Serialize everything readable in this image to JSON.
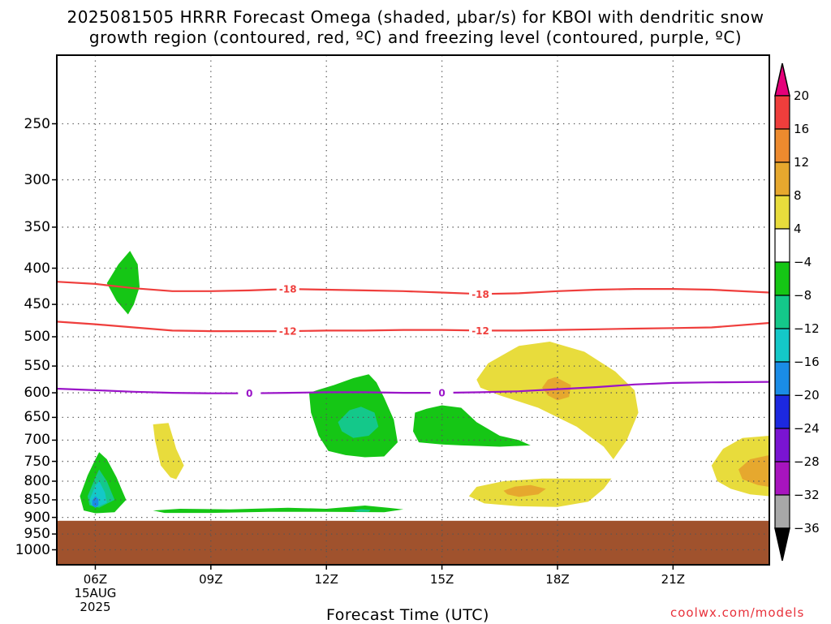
{
  "chart_data": {
    "type": "heatmap",
    "title_line1": "2025081505 HRRR Forecast Omega (shaded, μbar/s) for KBOI with dendritic snow",
    "title_line2": "growth region (contoured, red, ºC) and freezing level (contoured, purple, ºC)",
    "xlabel": "Forecast Time (UTC)",
    "credit": "coolwx.com/models",
    "x_ticks": [
      {
        "hour": 6,
        "label": "06Z",
        "sub1": "15AUG",
        "sub2": "2025"
      },
      {
        "hour": 9,
        "label": "09Z"
      },
      {
        "hour": 12,
        "label": "12Z"
      },
      {
        "hour": 15,
        "label": "15Z"
      },
      {
        "hour": 18,
        "label": "18Z"
      },
      {
        "hour": 21,
        "label": "21Z"
      }
    ],
    "x_range_hours": [
      5,
      23.5
    ],
    "y_ticks": [
      250,
      300,
      350,
      400,
      450,
      500,
      550,
      600,
      650,
      700,
      750,
      800,
      850,
      900,
      950,
      1000
    ],
    "y_axis": "pressure (hPa), log scale, decreasing upward",
    "y_range": [
      1050,
      200
    ],
    "grid": "dotted",
    "surface_below_hPa": 910,
    "colorbar": {
      "ticks": [
        20,
        16,
        12,
        8,
        4,
        -4,
        -8,
        -12,
        -16,
        -20,
        -24,
        -28,
        -32,
        -36
      ],
      "colors": [
        "#e5007a",
        "#ef3e3c",
        "#ed8a2e",
        "#e6a82e",
        "#e8dc3c",
        "#ffffff",
        "#15c615",
        "#14c88a",
        "#14c8c8",
        "#1a8ce6",
        "#1c28e0",
        "#7a14d2",
        "#a814be",
        "#a8a8a8",
        "#000000"
      ]
    },
    "isotherms": [
      {
        "label": "-18",
        "color": "#ef3e3c",
        "points": [
          [
            5,
            418
          ],
          [
            6,
            421
          ],
          [
            7,
            427
          ],
          [
            8,
            431
          ],
          [
            9,
            431
          ],
          [
            10,
            430
          ],
          [
            11,
            428
          ],
          [
            12,
            429
          ],
          [
            13,
            430
          ],
          [
            14,
            431
          ],
          [
            15,
            433
          ],
          [
            16,
            435
          ],
          [
            17,
            434
          ],
          [
            18,
            431
          ],
          [
            19,
            429
          ],
          [
            20,
            428
          ],
          [
            21,
            428
          ],
          [
            22,
            429
          ],
          [
            23.5,
            433
          ]
        ]
      },
      {
        "label": "-12",
        "color": "#ef3e3c",
        "points": [
          [
            5,
            476
          ],
          [
            6,
            480
          ],
          [
            7,
            485
          ],
          [
            8,
            490
          ],
          [
            9,
            491
          ],
          [
            10,
            491
          ],
          [
            11,
            491
          ],
          [
            12,
            490
          ],
          [
            13,
            490
          ],
          [
            14,
            489
          ],
          [
            15,
            489
          ],
          [
            16,
            490
          ],
          [
            17,
            490
          ],
          [
            18,
            489
          ],
          [
            19,
            488
          ],
          [
            20,
            487
          ],
          [
            21,
            486
          ],
          [
            22,
            485
          ],
          [
            23.5,
            478
          ]
        ]
      },
      {
        "label": "0",
        "color": "#9a14c8",
        "points": [
          [
            5,
            592
          ],
          [
            6,
            595
          ],
          [
            7,
            598
          ],
          [
            8,
            600
          ],
          [
            9,
            601
          ],
          [
            10,
            601
          ],
          [
            11,
            600
          ],
          [
            12,
            599
          ],
          [
            13,
            599
          ],
          [
            14,
            600
          ],
          [
            15,
            600
          ],
          [
            16,
            599
          ],
          [
            17,
            597
          ],
          [
            18,
            593
          ],
          [
            19,
            589
          ],
          [
            20,
            584
          ],
          [
            21,
            581
          ],
          [
            22,
            580
          ],
          [
            23.5,
            579
          ]
        ]
      }
    ],
    "omega_regions": [
      {
        "value": -4,
        "color": "#15c615",
        "points": [
          [
            6.3,
            420
          ],
          [
            6.6,
            395
          ],
          [
            6.9,
            378
          ],
          [
            7.1,
            395
          ],
          [
            7.15,
            425
          ],
          [
            7.0,
            450
          ],
          [
            6.85,
            465
          ],
          [
            6.55,
            445
          ]
        ]
      },
      {
        "value": -4,
        "color": "#15c615",
        "points": [
          [
            5.6,
            840
          ],
          [
            5.8,
            785
          ],
          [
            6.0,
            745
          ],
          [
            6.1,
            728
          ],
          [
            6.3,
            745
          ],
          [
            6.55,
            790
          ],
          [
            6.8,
            850
          ],
          [
            6.5,
            885
          ],
          [
            6.0,
            888
          ],
          [
            5.7,
            880
          ]
        ]
      },
      {
        "value": -8,
        "color": "#14c88a",
        "points": [
          [
            5.8,
            840
          ],
          [
            6.0,
            790
          ],
          [
            6.1,
            770
          ],
          [
            6.3,
            800
          ],
          [
            6.5,
            850
          ],
          [
            6.1,
            872
          ],
          [
            5.85,
            865
          ]
        ]
      },
      {
        "value": -12,
        "color": "#14c8c8",
        "points": [
          [
            5.85,
            850
          ],
          [
            6.0,
            812
          ],
          [
            6.1,
            800
          ],
          [
            6.25,
            830
          ],
          [
            6.3,
            858
          ],
          [
            6.0,
            872
          ],
          [
            5.9,
            865
          ]
        ]
      },
      {
        "value": -16,
        "color": "#1a8ce6",
        "points": [
          [
            5.92,
            852
          ],
          [
            6.0,
            840
          ],
          [
            6.08,
            848
          ],
          [
            6.08,
            865
          ],
          [
            6.0,
            872
          ],
          [
            5.92,
            865
          ]
        ]
      },
      {
        "value": -4,
        "color": "#15c615",
        "points": [
          [
            7.5,
            880
          ],
          [
            8.2,
            875
          ],
          [
            9.5,
            877
          ],
          [
            11.0,
            872
          ],
          [
            12.0,
            875
          ],
          [
            13.0,
            866
          ],
          [
            13.6,
            872
          ],
          [
            14.0,
            877
          ],
          [
            13.5,
            885
          ],
          [
            12.0,
            884
          ],
          [
            10.5,
            884
          ],
          [
            9.0,
            887
          ],
          [
            7.8,
            887
          ]
        ]
      },
      {
        "value": -8,
        "color": "#14c88a",
        "points": [
          [
            12.7,
            880
          ],
          [
            12.9,
            876
          ],
          [
            13.15,
            878
          ],
          [
            13.1,
            884
          ],
          [
            12.8,
            884
          ]
        ]
      },
      {
        "value": -4,
        "color": "#15c615",
        "points": [
          [
            11.55,
            600
          ],
          [
            11.6,
            640
          ],
          [
            11.8,
            690
          ],
          [
            12.05,
            725
          ],
          [
            12.5,
            735
          ],
          [
            13.0,
            740
          ],
          [
            13.5,
            738
          ],
          [
            13.85,
            705
          ],
          [
            13.75,
            655
          ],
          [
            13.5,
            610
          ],
          [
            13.3,
            580
          ],
          [
            13.1,
            565
          ],
          [
            12.7,
            572
          ],
          [
            12.2,
            585
          ],
          [
            11.8,
            594
          ]
        ]
      },
      {
        "value": -8,
        "color": "#14c88a",
        "points": [
          [
            12.3,
            660
          ],
          [
            12.6,
            635
          ],
          [
            12.9,
            628
          ],
          [
            13.25,
            640
          ],
          [
            13.35,
            670
          ],
          [
            13.1,
            690
          ],
          [
            12.7,
            695
          ],
          [
            12.4,
            680
          ]
        ]
      },
      {
        "value": -4,
        "color": "#15c615",
        "points": [
          [
            14.3,
            640
          ],
          [
            14.25,
            680
          ],
          [
            14.4,
            705
          ],
          [
            15.0,
            710
          ],
          [
            15.5,
            712
          ],
          [
            16.5,
            715
          ],
          [
            17.3,
            712
          ],
          [
            17.0,
            700
          ],
          [
            16.5,
            690
          ],
          [
            15.9,
            660
          ],
          [
            15.5,
            630
          ],
          [
            15.0,
            625
          ],
          [
            14.6,
            632
          ]
        ]
      },
      {
        "value": 4,
        "color": "#e8dc3c",
        "points": [
          [
            7.5,
            665
          ],
          [
            7.9,
            662
          ],
          [
            8.0,
            690
          ],
          [
            8.1,
            720
          ],
          [
            8.3,
            760
          ],
          [
            8.1,
            795
          ],
          [
            7.95,
            790
          ],
          [
            7.7,
            760
          ],
          [
            7.55,
            700
          ]
        ]
      },
      {
        "value": 4,
        "color": "#e8dc3c",
        "points": [
          [
            15.9,
            575
          ],
          [
            16.2,
            545
          ],
          [
            17.0,
            515
          ],
          [
            17.8,
            508
          ],
          [
            18.7,
            525
          ],
          [
            19.5,
            560
          ],
          [
            20.0,
            595
          ],
          [
            20.1,
            640
          ],
          [
            19.8,
            700
          ],
          [
            19.45,
            745
          ],
          [
            19.2,
            715
          ],
          [
            18.5,
            670
          ],
          [
            17.5,
            630
          ],
          [
            16.5,
            605
          ],
          [
            16.0,
            590
          ]
        ]
      },
      {
        "value": 8,
        "color": "#e6a82e",
        "points": [
          [
            17.6,
            590
          ],
          [
            17.75,
            575
          ],
          [
            17.95,
            570
          ],
          [
            18.35,
            585
          ],
          [
            18.3,
            608
          ],
          [
            18.0,
            615
          ],
          [
            17.75,
            605
          ]
        ]
      },
      {
        "value": 4,
        "color": "#e8dc3c",
        "points": [
          [
            15.7,
            840
          ],
          [
            15.9,
            815
          ],
          [
            16.6,
            800
          ],
          [
            17.6,
            793
          ],
          [
            18.4,
            793
          ],
          [
            19.4,
            793
          ],
          [
            19.2,
            820
          ],
          [
            18.8,
            855
          ],
          [
            18.0,
            870
          ],
          [
            17.0,
            868
          ],
          [
            16.1,
            860
          ]
        ]
      },
      {
        "value": 8,
        "color": "#e6a82e",
        "points": [
          [
            16.6,
            825
          ],
          [
            16.9,
            814
          ],
          [
            17.3,
            810
          ],
          [
            17.7,
            820
          ],
          [
            17.5,
            835
          ],
          [
            17.0,
            842
          ],
          [
            16.7,
            835
          ]
        ]
      },
      {
        "value": 4,
        "color": "#e8dc3c",
        "points": [
          [
            23.5,
            690
          ],
          [
            22.8,
            695
          ],
          [
            22.3,
            720
          ],
          [
            22.0,
            760
          ],
          [
            22.15,
            800
          ],
          [
            22.5,
            820
          ],
          [
            23.0,
            835
          ],
          [
            23.5,
            840
          ]
        ]
      },
      {
        "value": 8,
        "color": "#e6a82e",
        "points": [
          [
            23.5,
            735
          ],
          [
            23.0,
            745
          ],
          [
            22.7,
            770
          ],
          [
            22.8,
            795
          ],
          [
            23.2,
            810
          ],
          [
            23.5,
            815
          ]
        ]
      }
    ]
  }
}
